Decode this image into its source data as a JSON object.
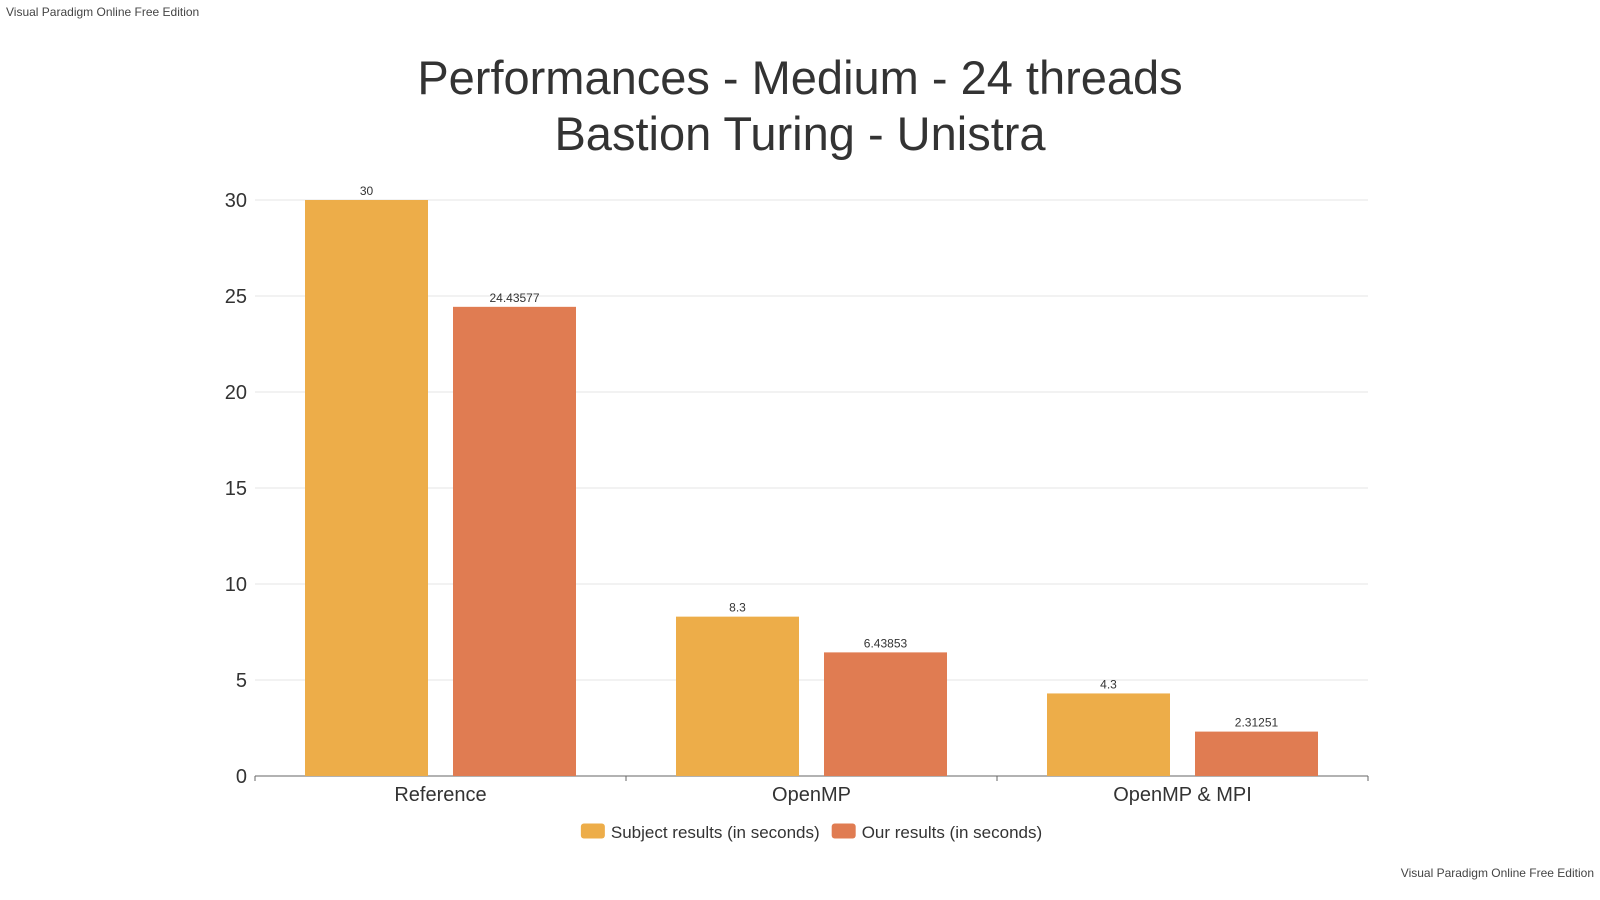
{
  "watermark": {
    "top": "Visual Paradigm Online Free Edition",
    "bottom": "Visual Paradigm Online Free Edition"
  },
  "chart_data": {
    "type": "bar",
    "title": "Performances - Medium - 24 threads",
    "subtitle": "Bastion Turing - Unistra",
    "xlabel": "",
    "ylabel": "",
    "categories": [
      "Reference",
      "OpenMP",
      "OpenMP & MPI"
    ],
    "series": [
      {
        "name": "Subject results (in seconds)",
        "color": "#EDAD49",
        "values": [
          30,
          8.3,
          4.3
        ],
        "labels": [
          "30",
          "8.3",
          "4.3"
        ]
      },
      {
        "name": "Our results (in seconds)",
        "color": "#E07C52",
        "values": [
          24.43577,
          6.43853,
          2.31251
        ],
        "labels": [
          "24.43577",
          "6.43853",
          "2.31251"
        ]
      }
    ],
    "ylim": [
      0,
      30
    ],
    "yticks": [
      0,
      5,
      10,
      15,
      20,
      25,
      30
    ],
    "grid": true,
    "legend_position": "bottom"
  }
}
